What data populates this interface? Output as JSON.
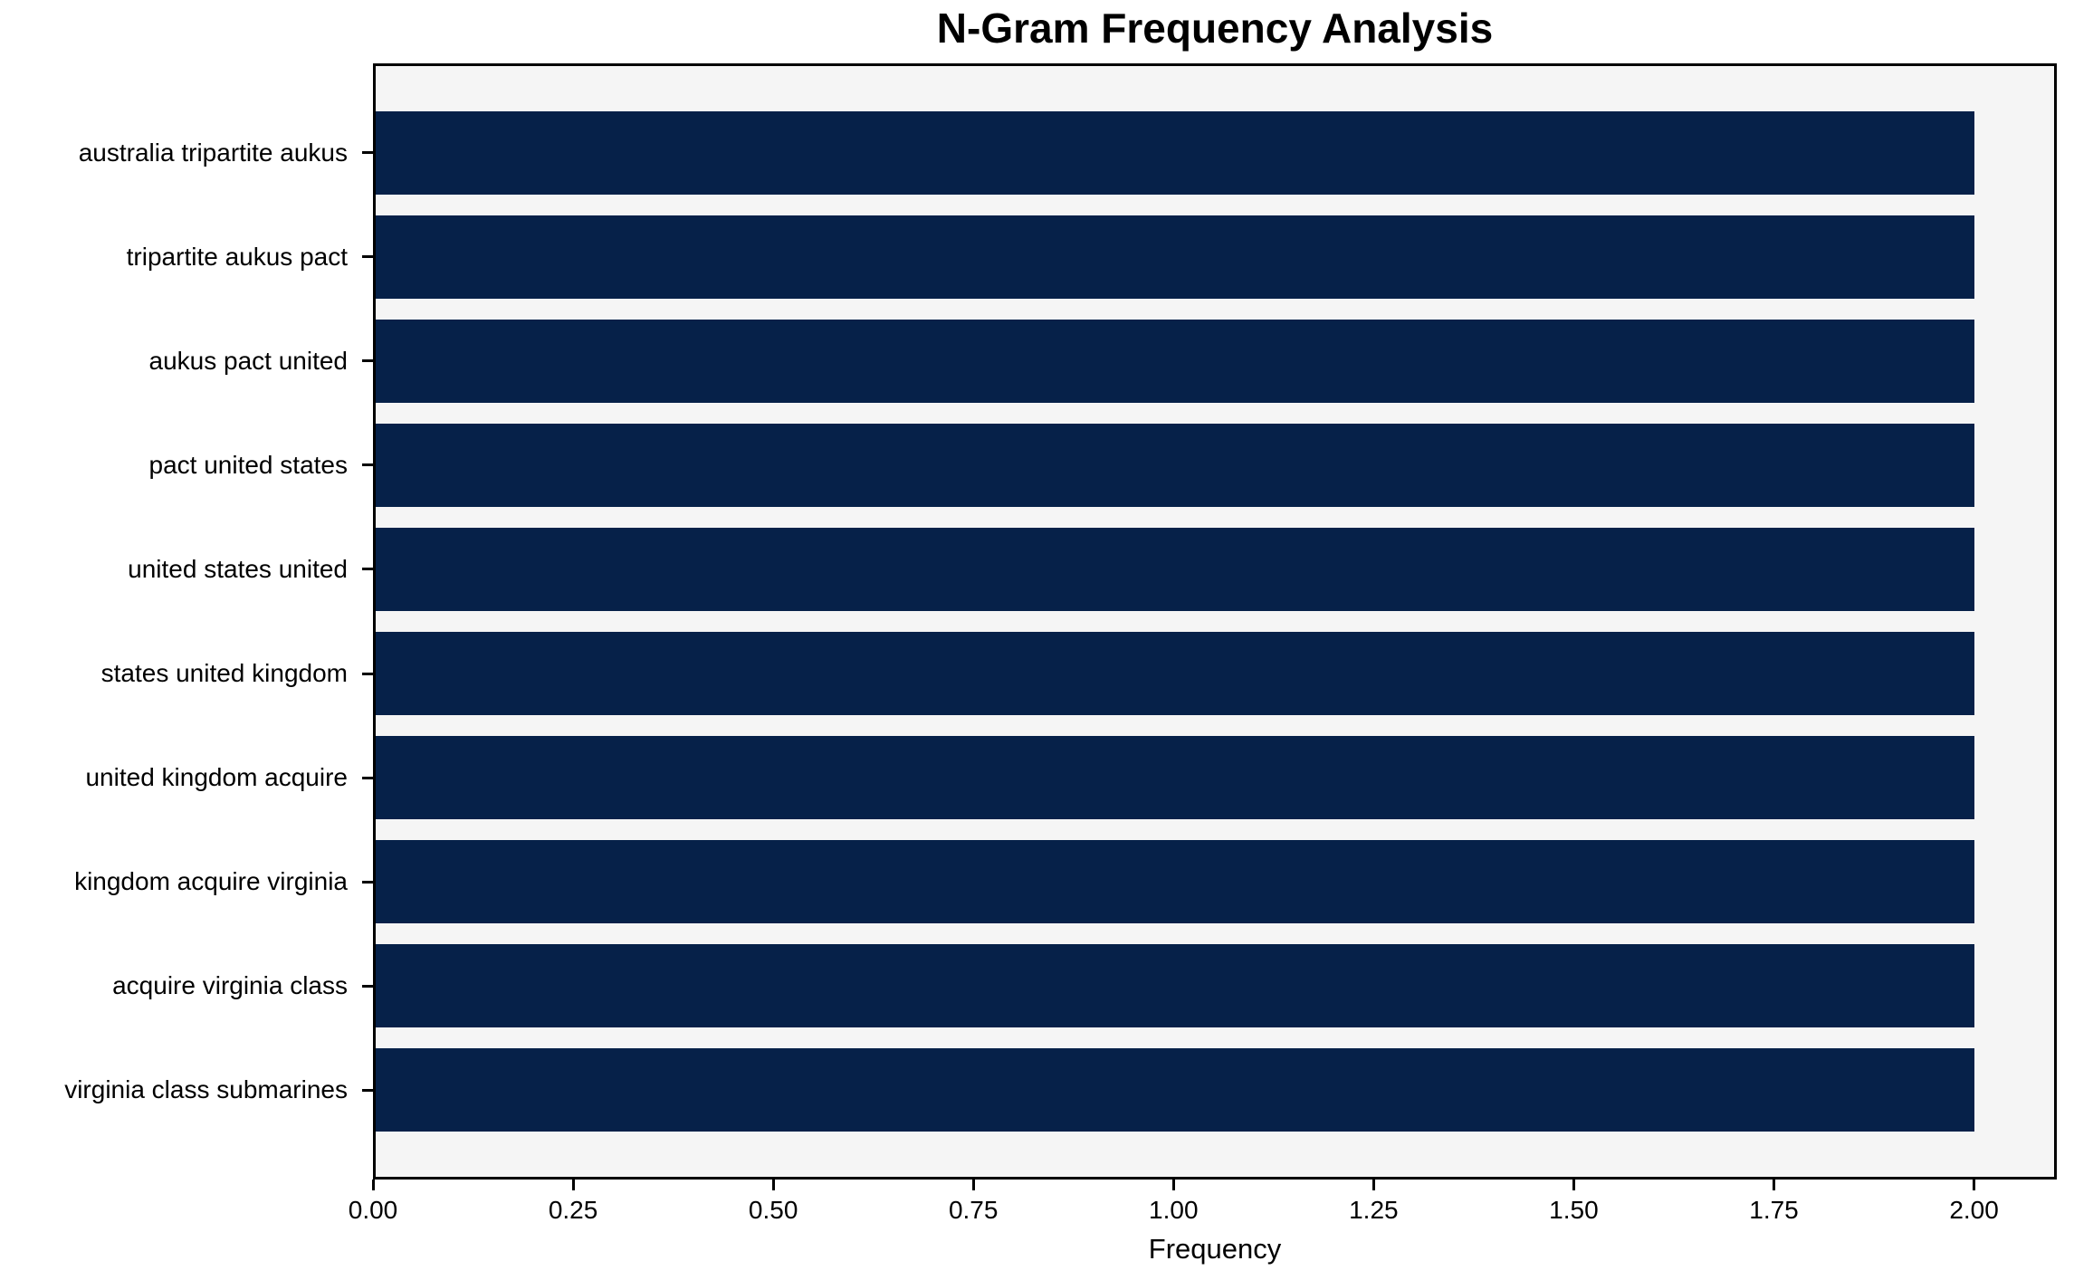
{
  "chart_data": {
    "type": "bar",
    "orientation": "horizontal",
    "title": "N-Gram Frequency Analysis",
    "xlabel": "Frequency",
    "ylabel": "",
    "categories": [
      "australia tripartite aukus",
      "tripartite aukus pact",
      "aukus pact united",
      "pact united states",
      "united states united",
      "states united kingdom",
      "united kingdom acquire",
      "kingdom acquire virginia",
      "acquire virginia class",
      "virginia class submarines"
    ],
    "values": [
      2,
      2,
      2,
      2,
      2,
      2,
      2,
      2,
      2,
      2
    ],
    "xlim": [
      0,
      2.1
    ],
    "xticks": [
      0,
      0.25,
      0.5,
      0.75,
      1.0,
      1.25,
      1.5,
      1.75,
      2.0
    ],
    "xtick_labels": [
      "0.00",
      "0.25",
      "0.50",
      "0.75",
      "1.00",
      "1.25",
      "1.50",
      "1.75",
      "2.00"
    ],
    "grid": false,
    "legend": null,
    "colors": {
      "bar": "#062149",
      "plot_background": "#f5f5f5",
      "figure_background": "#ffffff",
      "spine": "#000000",
      "text": "#000000"
    }
  }
}
